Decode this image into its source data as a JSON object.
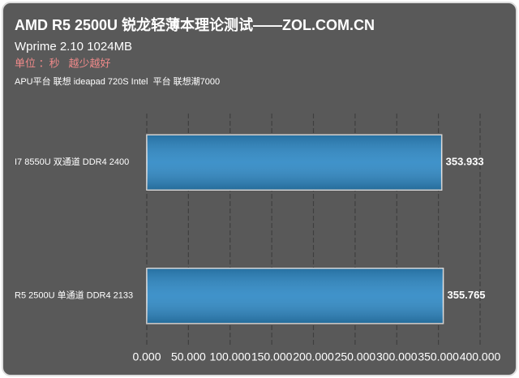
{
  "chart_data": {
    "type": "bar",
    "orientation": "horizontal",
    "title": "AMD R5 2500U 锐龙轻薄本理论测试——ZOL.COM.CN",
    "subtitle": "Wprime 2.10 1024MB",
    "annotations": [
      "单位 ：秒   越少越好",
      "APU平台 联想 ideapad 720S Intel  平台 联想潮7000"
    ],
    "categories": [
      "I7 8550U 双通道 DDR4 2400",
      "R5 2500U 单通道 DDR4 2133"
    ],
    "values": [
      353.933,
      355.765
    ],
    "color": "#2f89c5",
    "xlim": [
      0,
      400
    ],
    "xticks": [
      {
        "value": 0,
        "label": "0.000"
      },
      {
        "value": 50,
        "label": "50.000"
      },
      {
        "value": 100,
        "label": "100.000"
      },
      {
        "value": 150,
        "label": "150.000"
      },
      {
        "value": 200,
        "label": "200.000"
      },
      {
        "value": 250,
        "label": "250.000"
      },
      {
        "value": 300,
        "label": "300.000"
      },
      {
        "value": 350,
        "label": "350.000"
      },
      {
        "value": 400,
        "label": "400.000"
      }
    ],
    "grid": true
  }
}
